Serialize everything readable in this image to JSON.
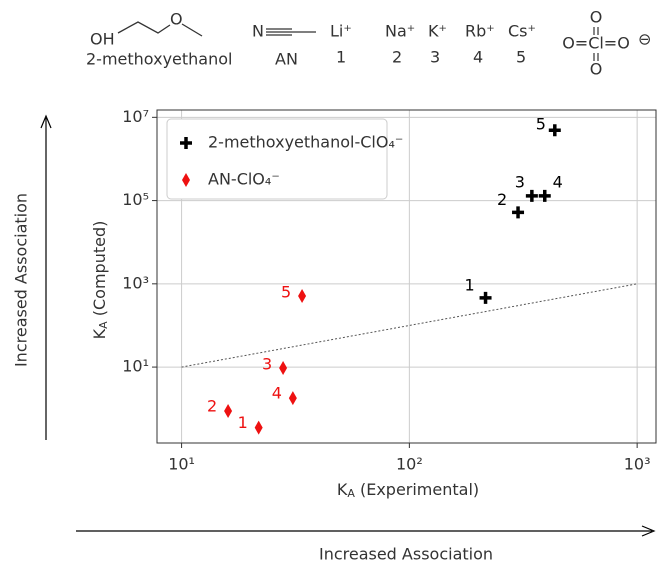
{
  "header": {
    "meo_oh": "OH",
    "meo_o": "O",
    "meo_name": "2-methoxyethanol",
    "an_n": "N",
    "an_name": "AN",
    "ions": [
      "Li⁺",
      "Na⁺",
      "K⁺",
      "Rb⁺",
      "Cs⁺"
    ],
    "ion_numbers": [
      "1",
      "2",
      "3",
      "4",
      "5"
    ],
    "perchlorate": [
      "O",
      "O=Cl=O",
      "O"
    ],
    "perchlorate_charge": "⊖"
  },
  "chart_data": {
    "type": "scatter",
    "log_x": true,
    "log_y": true,
    "grid": true,
    "legend": "upper left",
    "xlabel": {
      "symbol": "K",
      "subscript": "A",
      "text": " (Experimental)"
    },
    "ylabel": {
      "symbol": "K",
      "subscript": "A",
      "text": " (Computed)"
    },
    "xlim": [
      7.8,
      1210
    ],
    "ylim": [
      0.15,
      15000000
    ],
    "xticks": [
      {
        "value": 10,
        "label": "10¹"
      },
      {
        "value": 100,
        "label": "10²"
      },
      {
        "value": 1000,
        "label": "10³"
      }
    ],
    "yticks": [
      {
        "value": 10,
        "label": "10¹"
      },
      {
        "value": 1000,
        "label": "10³"
      },
      {
        "value": 100000,
        "label": "10⁵"
      },
      {
        "value": 10000000,
        "label": "10⁷"
      }
    ],
    "reference_line": {
      "x": [
        10,
        1000
      ],
      "y": [
        10,
        1000
      ],
      "color": "#555555"
    },
    "series": [
      {
        "name": "2-methoxyethanol-ClO₄⁻",
        "color": "#000000",
        "marker": "plus",
        "x": [
          216,
          300,
          345,
          393,
          435
        ],
        "values": [
          460,
          52000,
          130000,
          130000,
          4900000
        ],
        "point_labels": [
          "1",
          "2",
          "3",
          "4",
          "5"
        ]
      },
      {
        "name": "AN-ClO₄⁻",
        "color": "#ee1111",
        "marker": "diamond",
        "x": [
          21.8,
          16,
          27.9,
          30.8,
          33.8
        ],
        "values": [
          0.35,
          0.88,
          9.5,
          1.8,
          510
        ],
        "point_labels": [
          "1",
          "2",
          "3",
          "4",
          "5"
        ]
      }
    ],
    "annotations": [
      "Increased Association",
      "Increased Association"
    ]
  }
}
